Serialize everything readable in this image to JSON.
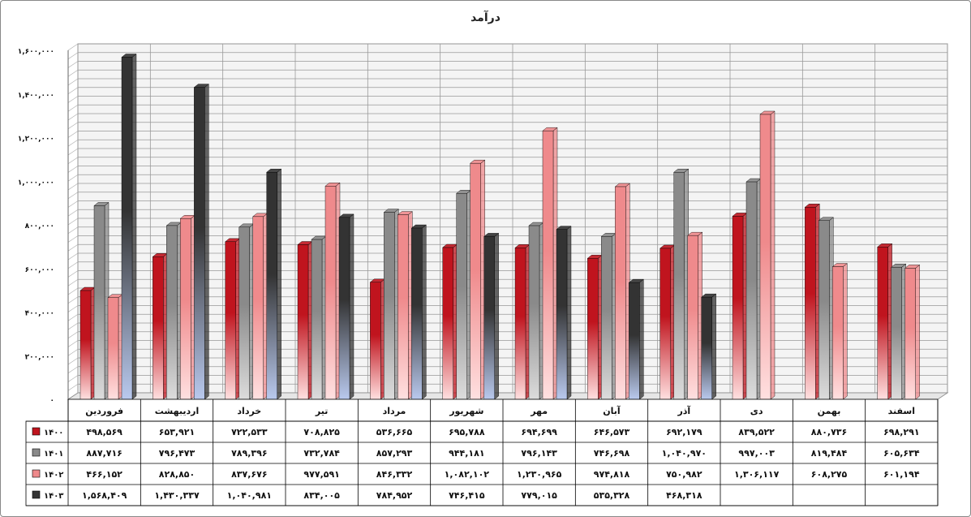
{
  "chart_data": {
    "type": "bar",
    "title": "درآمد",
    "categories": [
      "فروردین",
      "اردیبهشت",
      "خرداد",
      "تیر",
      "مرداد",
      "شهریور",
      "مهر",
      "آبان",
      "آذر",
      "دی",
      "بهمن",
      "اسفند"
    ],
    "series": [
      {
        "name": "۱۴۰۰",
        "color": "#c0141e",
        "values": [
          498569,
          653921,
          722533,
          708825,
          536665,
          695788,
          694699,
          646573,
          692179,
          839522,
          880736,
          698291
        ],
        "labels": [
          "۴۹۸,۵۶۹",
          "۶۵۳,۹۲۱",
          "۷۲۲,۵۳۳",
          "۷۰۸,۸۲۵",
          "۵۳۶,۶۶۵",
          "۶۹۵,۷۸۸",
          "۶۹۴,۶۹۹",
          "۶۴۶,۵۷۳",
          "۶۹۲,۱۷۹",
          "۸۳۹,۵۲۲",
          "۸۸۰,۷۳۶",
          "۶۹۸,۲۹۱"
        ]
      },
      {
        "name": "۱۴۰۱",
        "color": "#8a8a8a",
        "values": [
          887716,
          796473,
          789396,
          732784,
          857293,
          944181,
          796143,
          746698,
          1040970,
          997003,
          819484,
          605634
        ],
        "labels": [
          "۸۸۷,۷۱۶",
          "۷۹۶,۴۷۳",
          "۷۸۹,۳۹۶",
          "۷۳۲,۷۸۴",
          "۸۵۷,۲۹۳",
          "۹۴۴,۱۸۱",
          "۷۹۶,۱۴۳",
          "۷۴۶,۶۹۸",
          "۱,۰۴۰,۹۷۰",
          "۹۹۷,۰۰۳",
          "۸۱۹,۴۸۴",
          "۶۰۵,۶۳۴"
        ]
      },
      {
        "name": "۱۴۰۲",
        "color": "#ef8a8c",
        "values": [
          466152,
          828850,
          837676,
          977591,
          846332,
          1082102,
          1230965,
          974818,
          750982,
          1306117,
          608275,
          601194
        ],
        "labels": [
          "۴۶۶,۱۵۲",
          "۸۲۸,۸۵۰",
          "۸۳۷,۶۷۶",
          "۹۷۷,۵۹۱",
          "۸۴۶,۳۳۲",
          "۱,۰۸۲,۱۰۲",
          "۱,۲۳۰,۹۶۵",
          "۹۷۴,۸۱۸",
          "۷۵۰,۹۸۲",
          "۱,۳۰۶,۱۱۷",
          "۶۰۸,۲۷۵",
          "۶۰۱,۱۹۴"
        ]
      },
      {
        "name": "۱۴۰۳",
        "color": "#333333",
        "values": [
          1568409,
          1430337,
          1040981,
          834005,
          784952,
          746415,
          779015,
          535328,
          468318,
          null,
          null,
          null
        ],
        "labels": [
          "۱,۵۶۸,۴۰۹",
          "۱,۴۳۰,۳۳۷",
          "۱,۰۴۰,۹۸۱",
          "۸۳۴,۰۰۵",
          "۷۸۴,۹۵۲",
          "۷۴۶,۴۱۵",
          "۷۷۹,۰۱۵",
          "۵۳۵,۳۲۸",
          "۴۶۸,۳۱۸",
          "",
          "",
          ""
        ]
      }
    ],
    "yticks": [
      0,
      200000,
      400000,
      600000,
      800000,
      1000000,
      1200000,
      1400000,
      1600000
    ],
    "ytick_labels": [
      "۰",
      "۲۰۰,۰۰۰",
      "۴۰۰,۰۰۰",
      "۶۰۰,۰۰۰",
      "۸۰۰,۰۰۰",
      "۱,۰۰۰,۰۰۰",
      "۱,۲۰۰,۰۰۰",
      "۱,۴۰۰,۰۰۰",
      "۱,۶۰۰,۰۰۰"
    ],
    "ylim": [
      0,
      1600000
    ],
    "grid": true,
    "legend": "data-table"
  }
}
